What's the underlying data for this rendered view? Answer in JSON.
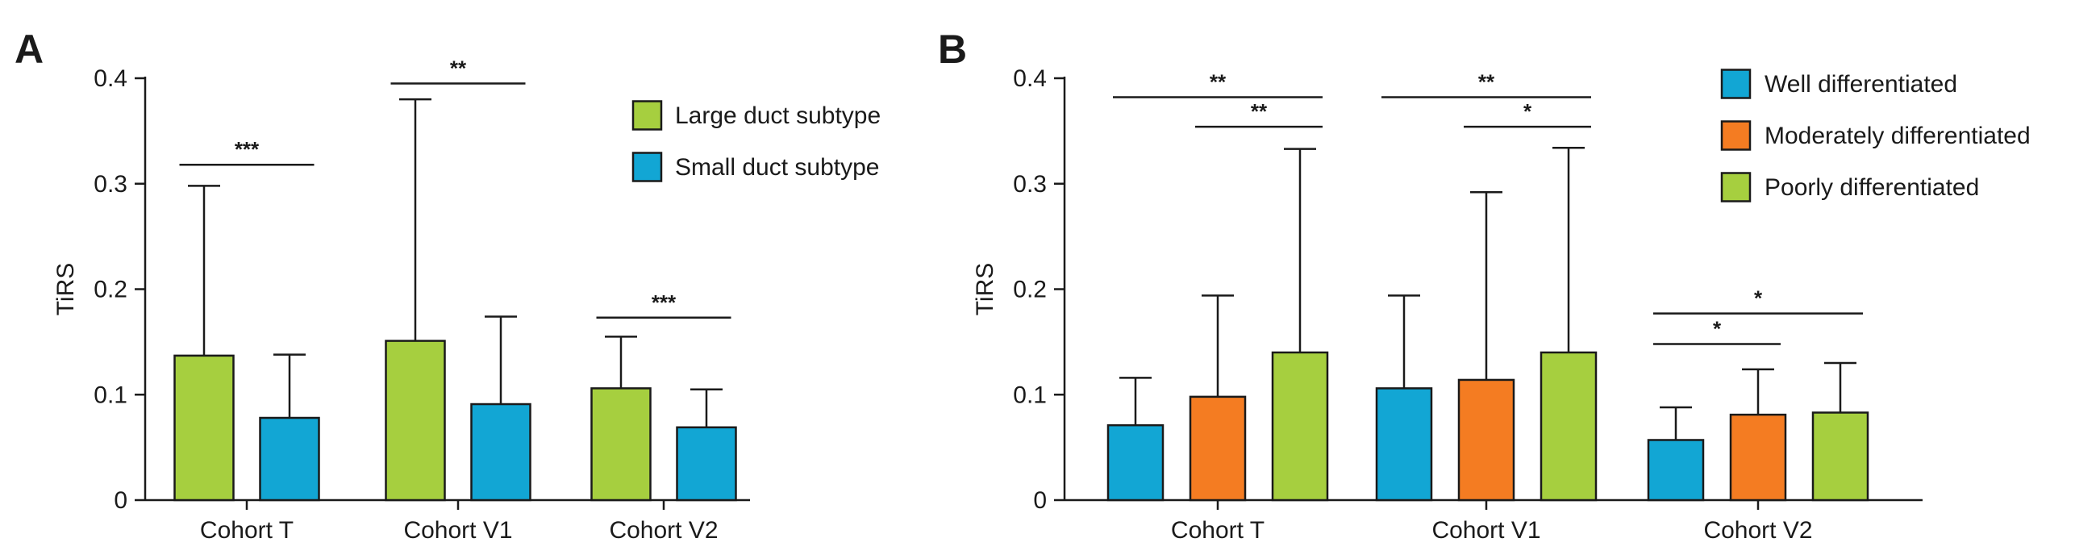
{
  "chart_data": [
    {
      "panel": "A",
      "type": "bar",
      "ylabel": "TiRS",
      "ylim": [
        0,
        0.4
      ],
      "yticks": [
        0,
        0.1,
        0.2,
        0.3,
        0.4
      ],
      "ytick_labels": [
        "0",
        "0.1",
        "0.2",
        "0.3",
        "0.4"
      ],
      "categories": [
        "Cohort T",
        "Cohort V1",
        "Cohort V2"
      ],
      "series": [
        {
          "name": "Large duct subtype",
          "color": "#a6cf3f",
          "values": [
            0.137,
            0.151,
            0.106
          ],
          "error_upper": [
            0.298,
            0.38,
            0.155
          ]
        },
        {
          "name": "Small duct subtype",
          "color": "#12a6d4",
          "values": [
            0.078,
            0.091,
            0.069
          ],
          "error_upper": [
            0.138,
            0.174,
            0.105
          ]
        }
      ],
      "legend_position": "top-right",
      "significance": [
        {
          "category": "Cohort T",
          "from_series": 0,
          "to_series": 1,
          "label": "***",
          "y": 0.318
        },
        {
          "category": "Cohort V1",
          "from_series": 0,
          "to_series": 1,
          "label": "**",
          "y": 0.395
        },
        {
          "category": "Cohort V2",
          "from_series": 0,
          "to_series": 1,
          "label": "***",
          "y": 0.173
        }
      ]
    },
    {
      "panel": "B",
      "type": "bar",
      "ylabel": "TiRS",
      "ylim": [
        0,
        0.4
      ],
      "yticks": [
        0,
        0.1,
        0.2,
        0.3,
        0.4
      ],
      "ytick_labels": [
        "0",
        "0.1",
        "0.2",
        "0.3",
        "0.4"
      ],
      "categories": [
        "Cohort T",
        "Cohort V1",
        "Cohort V2"
      ],
      "series": [
        {
          "name": "Well differentiated",
          "color": "#12a6d4",
          "values": [
            0.071,
            0.106,
            0.057
          ],
          "error_upper": [
            0.116,
            0.194,
            0.088
          ]
        },
        {
          "name": "Moderately differentiated",
          "color": "#f47c22",
          "values": [
            0.098,
            0.114,
            0.081
          ],
          "error_upper": [
            0.194,
            0.292,
            0.124
          ]
        },
        {
          "name": "Poorly differentiated",
          "color": "#a6cf3f",
          "values": [
            0.14,
            0.14,
            0.083
          ],
          "error_upper": [
            0.333,
            0.334,
            0.13
          ]
        }
      ],
      "legend_position": "top-right",
      "significance": [
        {
          "category": "Cohort T",
          "from_series": 0,
          "to_series": 2,
          "label": "**",
          "y": 0.382
        },
        {
          "category": "Cohort T",
          "from_series": 1,
          "to_series": 2,
          "label": "**",
          "y": 0.354
        },
        {
          "category": "Cohort V1",
          "from_series": 0,
          "to_series": 2,
          "label": "**",
          "y": 0.382
        },
        {
          "category": "Cohort V1",
          "from_series": 1,
          "to_series": 2,
          "label": "*",
          "y": 0.354
        },
        {
          "category": "Cohort V2",
          "from_series": 0,
          "to_series": 2,
          "label": "*",
          "y": 0.177
        },
        {
          "category": "Cohort V2",
          "from_series": 0,
          "to_series": 1,
          "label": "*",
          "y": 0.148
        }
      ]
    }
  ]
}
